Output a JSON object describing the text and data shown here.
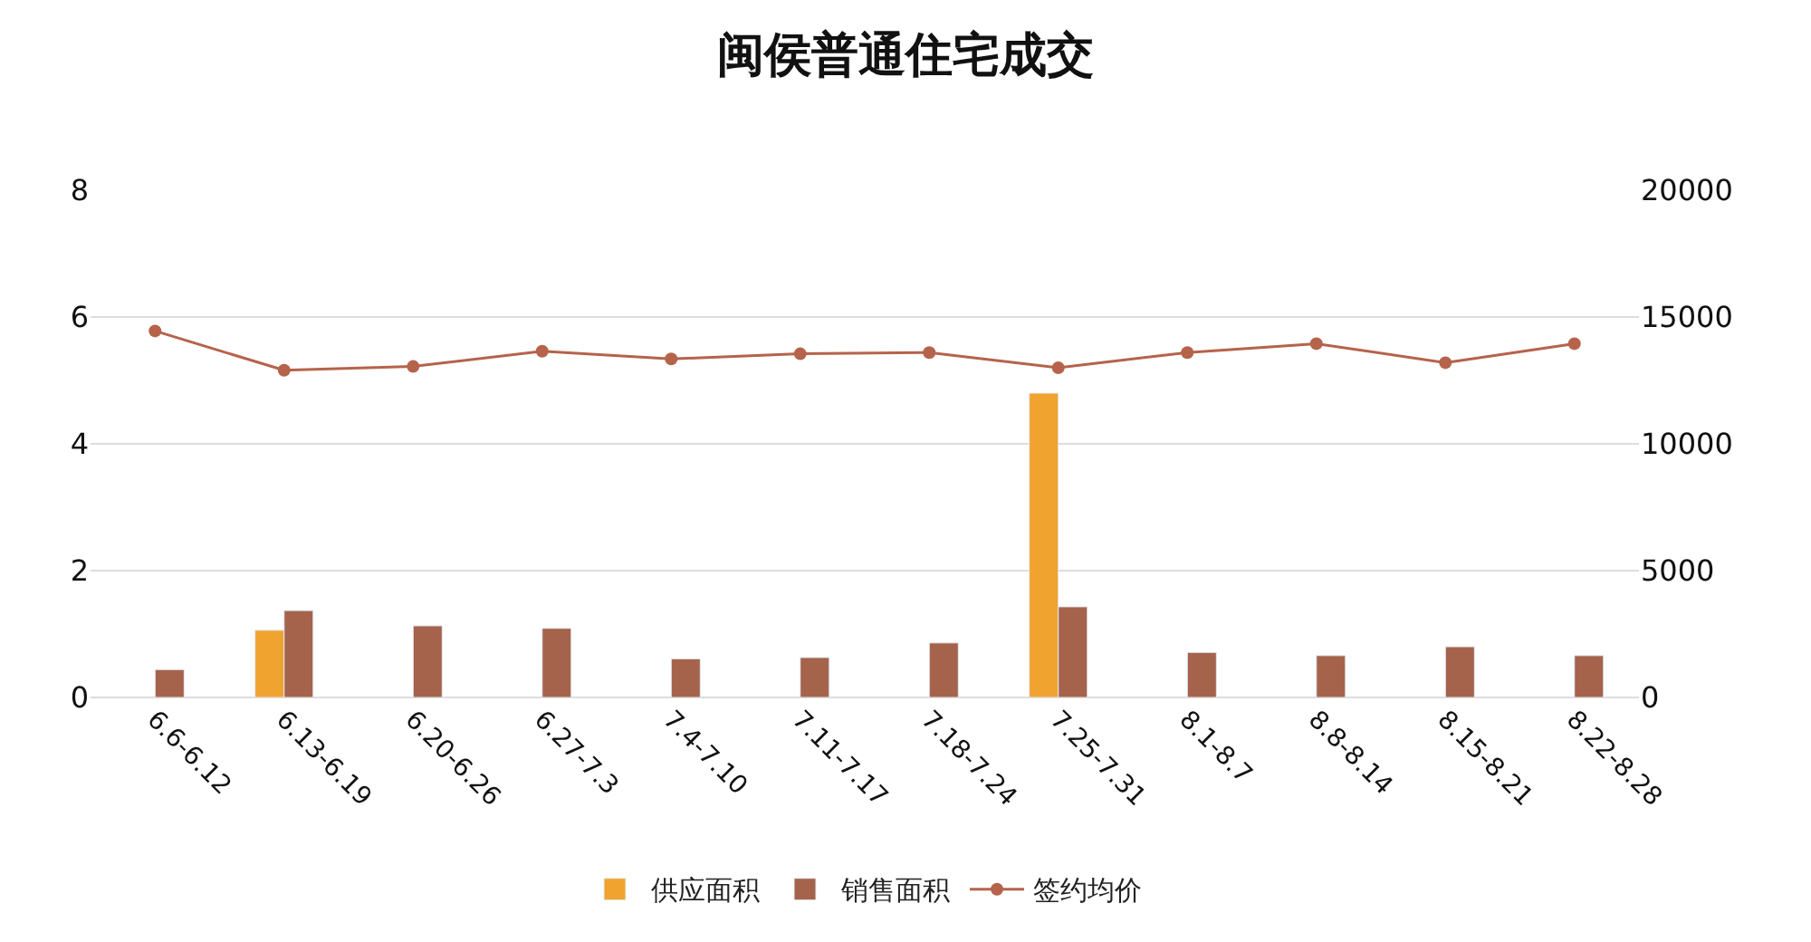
{
  "chart_data": {
    "type": "bar",
    "title": "闽侯普通住宅成交",
    "categories": [
      "6.6-6.12",
      "6.13-6.19",
      "6.20-6.26",
      "6.27-7.3",
      "7.4-7.10",
      "7.11-7.17",
      "7.18-7.24",
      "7.25-7.31",
      "8.1-8.7",
      "8.8-8.14",
      "8.15-8.21",
      "8.22-8.28"
    ],
    "series": [
      {
        "name": "供应面积",
        "color": "#f0a32e",
        "values": [
          null,
          1.06,
          null,
          null,
          null,
          null,
          null,
          4.8,
          null,
          null,
          null,
          null
        ]
      },
      {
        "name": "销售面积",
        "color": "#a5634b",
        "values": [
          0.44,
          1.37,
          1.13,
          1.09,
          0.61,
          0.63,
          0.86,
          1.43,
          0.71,
          0.66,
          0.8,
          0.66
        ]
      },
      {
        "name": "签约均价",
        "type": "line",
        "axis": "y2",
        "color": "#b5634b",
        "marker": "circle",
        "values": [
          14450,
          12900,
          13050,
          13650,
          13350,
          13550,
          13600,
          13000,
          13600,
          13950,
          13200,
          13950
        ]
      }
    ],
    "ylim": [
      0,
      8
    ],
    "yticks": [
      0,
      2,
      4,
      6,
      8
    ],
    "y2lim": [
      0,
      20000
    ],
    "y2ticks": [
      0,
      5000,
      10000,
      15000,
      20000
    ],
    "grid": "y",
    "legend": "bottom"
  }
}
